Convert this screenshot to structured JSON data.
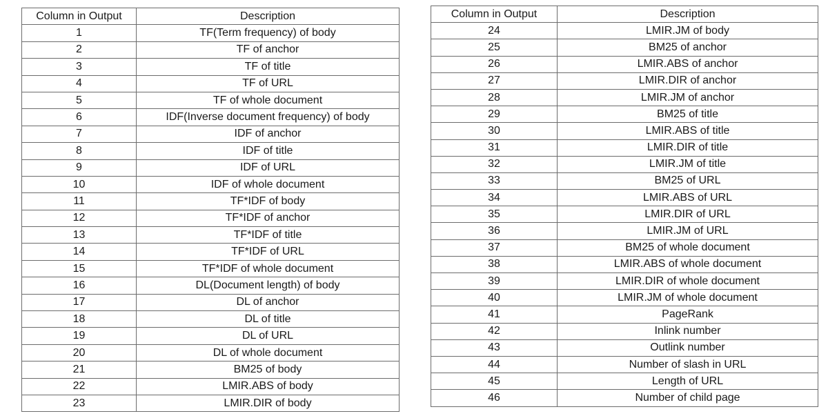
{
  "headers": {
    "column": "Column in Output",
    "description": "Description"
  },
  "left_rows": [
    {
      "n": "1",
      "desc": "TF(Term frequency) of body"
    },
    {
      "n": "2",
      "desc": "TF of anchor"
    },
    {
      "n": "3",
      "desc": "TF of title"
    },
    {
      "n": "4",
      "desc": "TF of URL"
    },
    {
      "n": "5",
      "desc": "TF of whole document"
    },
    {
      "n": "6",
      "desc": "IDF(Inverse document frequency) of body"
    },
    {
      "n": "7",
      "desc": "IDF of anchor"
    },
    {
      "n": "8",
      "desc": "IDF of title"
    },
    {
      "n": "9",
      "desc": "IDF of URL"
    },
    {
      "n": "10",
      "desc": "IDF of whole document"
    },
    {
      "n": "11",
      "desc": "TF*IDF of body"
    },
    {
      "n": "12",
      "desc": "TF*IDF of anchor"
    },
    {
      "n": "13",
      "desc": "TF*IDF of title"
    },
    {
      "n": "14",
      "desc": "TF*IDF of URL"
    },
    {
      "n": "15",
      "desc": "TF*IDF of whole document"
    },
    {
      "n": "16",
      "desc": "DL(Document length) of body"
    },
    {
      "n": "17",
      "desc": "DL of anchor"
    },
    {
      "n": "18",
      "desc": "DL of title"
    },
    {
      "n": "19",
      "desc": "DL of URL"
    },
    {
      "n": "20",
      "desc": "DL of whole document"
    },
    {
      "n": "21",
      "desc": "BM25 of body"
    },
    {
      "n": "22",
      "desc": "LMIR.ABS of body"
    },
    {
      "n": "23",
      "desc": "LMIR.DIR of body"
    }
  ],
  "right_rows": [
    {
      "n": "24",
      "desc": "LMIR.JM of body"
    },
    {
      "n": "25",
      "desc": "BM25 of anchor"
    },
    {
      "n": "26",
      "desc": "LMIR.ABS of anchor"
    },
    {
      "n": "27",
      "desc": "LMIR.DIR of anchor"
    },
    {
      "n": "28",
      "desc": "LMIR.JM of anchor"
    },
    {
      "n": "29",
      "desc": "BM25 of title"
    },
    {
      "n": "30",
      "desc": "LMIR.ABS of title"
    },
    {
      "n": "31",
      "desc": "LMIR.DIR of title"
    },
    {
      "n": "32",
      "desc": "LMIR.JM of title"
    },
    {
      "n": "33",
      "desc": "BM25 of URL"
    },
    {
      "n": "34",
      "desc": "LMIR.ABS of URL"
    },
    {
      "n": "35",
      "desc": "LMIR.DIR of URL"
    },
    {
      "n": "36",
      "desc": "LMIR.JM of URL"
    },
    {
      "n": "37",
      "desc": "BM25 of whole document"
    },
    {
      "n": "38",
      "desc": "LMIR.ABS of whole document"
    },
    {
      "n": "39",
      "desc": "LMIR.DIR of whole document"
    },
    {
      "n": "40",
      "desc": "LMIR.JM of whole document"
    },
    {
      "n": "41",
      "desc": "PageRank"
    },
    {
      "n": "42",
      "desc": "Inlink number"
    },
    {
      "n": "43",
      "desc": "Outlink number"
    },
    {
      "n": "44",
      "desc": "Number of slash in URL"
    },
    {
      "n": "45",
      "desc": "Length of URL"
    },
    {
      "n": "46",
      "desc": "Number of child page"
    }
  ]
}
